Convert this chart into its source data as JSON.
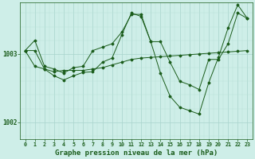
{
  "background_color": "#ceeee8",
  "grid_color_major": "#a8d4cc",
  "grid_color_minor": "#b8e0d8",
  "line_color": "#1a5c1a",
  "xlabel": "Graphe pression niveau de la mer (hPa)",
  "xlabel_fontsize": 6.5,
  "tick_fontsize": 4.8,
  "ytick_label_fontsize": 5.5,
  "ylim": [
    1001.75,
    1003.75
  ],
  "xlim": [
    -0.5,
    23.5
  ],
  "yticks": [
    1002.0,
    1003.0
  ],
  "xticks": [
    0,
    1,
    2,
    3,
    4,
    5,
    6,
    7,
    8,
    9,
    10,
    11,
    12,
    13,
    14,
    15,
    16,
    17,
    18,
    19,
    20,
    21,
    22,
    23
  ],
  "series": [
    [
      1003.05,
      1003.2,
      1002.82,
      1002.78,
      1002.72,
      1002.8,
      1002.82,
      1003.05,
      1003.1,
      1003.15,
      1003.32,
      1003.58,
      1003.58,
      1003.18,
      1003.18,
      1002.88,
      1002.6,
      1002.55,
      1002.48,
      1002.92,
      1002.92,
      1003.15,
      1003.6,
      1003.52
    ],
    [
      1003.05,
      1002.82,
      1002.78,
      1002.74,
      1002.76,
      1002.76,
      1002.76,
      1002.78,
      1002.8,
      1002.84,
      1002.88,
      1002.92,
      1002.94,
      1002.95,
      1002.96,
      1002.97,
      1002.98,
      1002.99,
      1003.0,
      1003.01,
      1003.02,
      1003.03,
      1003.04,
      1003.05
    ],
    [
      1003.05,
      1003.05,
      1002.78,
      1002.68,
      1002.62,
      1002.68,
      1002.73,
      1002.74,
      1002.88,
      1002.94,
      1003.28,
      1003.6,
      1003.55,
      1003.18,
      1002.72,
      1002.38,
      1002.22,
      1002.17,
      1002.12,
      1002.58,
      1002.95,
      1003.38,
      1003.72,
      1003.52
    ]
  ],
  "series_styles": [
    {
      "marker": "D",
      "markersize": 1.5,
      "linewidth": 0.7
    },
    {
      "marker": "D",
      "markersize": 1.5,
      "linewidth": 0.7
    },
    {
      "marker": "D",
      "markersize": 1.5,
      "linewidth": 0.7
    }
  ]
}
